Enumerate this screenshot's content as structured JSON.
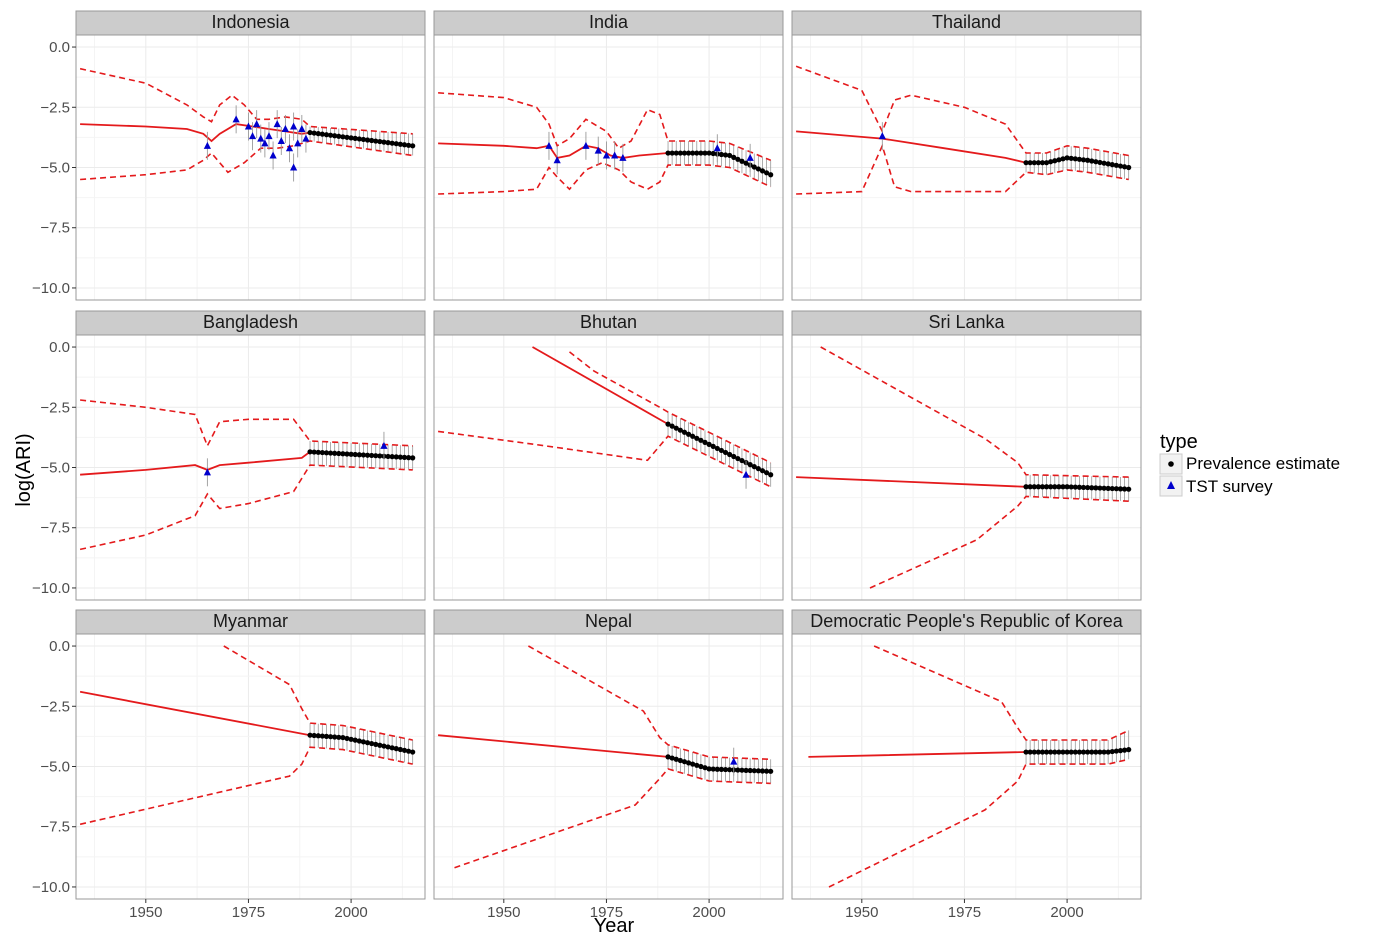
{
  "chart_data": {
    "type": "line",
    "xlabel": "Year",
    "ylabel": "log(ARI)",
    "xlim": [
      1933,
      2018
    ],
    "ylim": [
      -10.5,
      0.5
    ],
    "x_ticks": [
      1950,
      1975,
      2000
    ],
    "x_tick_labels": [
      "1950",
      "1975",
      "2000"
    ],
    "y_ticks": [
      0,
      -2.5,
      -5,
      -7.5,
      -10
    ],
    "y_tick_labels": [
      "0.0",
      "−2.5",
      "−5.0",
      "−7.5",
      "−10.0"
    ],
    "grid": true,
    "legend": {
      "title": "type",
      "placement": "right",
      "entries": [
        {
          "label": "Prevalence estimate",
          "marker": "circle",
          "color": "#000000"
        },
        {
          "label": "TST survey",
          "marker": "triangle",
          "color": "#0000cc"
        }
      ]
    },
    "colors": {
      "fit_line": "#e41a1c",
      "ci_line": "#e41a1c",
      "prevalence_point": "#000000",
      "tst_point": "#0000cc",
      "error_bar": "#999999",
      "strip_bg": "#cccccc",
      "panel_border": "#999999",
      "grid": "#ebebeb"
    },
    "panels": [
      {
        "name": "Indonesia",
        "fit": [
          [
            1934,
            -3.2
          ],
          [
            1950,
            -3.3
          ],
          [
            1960,
            -3.4
          ],
          [
            1964,
            -3.6
          ],
          [
            1966,
            -3.9
          ],
          [
            1968,
            -3.6
          ],
          [
            1972,
            -3.2
          ],
          [
            1976,
            -3.3
          ],
          [
            1980,
            -3.4
          ],
          [
            1984,
            -3.5
          ],
          [
            1988,
            -3.6
          ],
          [
            1990,
            -3.55
          ],
          [
            2015,
            -4.1
          ]
        ],
        "upper": [
          [
            1934,
            -0.9
          ],
          [
            1950,
            -1.5
          ],
          [
            1960,
            -2.4
          ],
          [
            1964,
            -2.9
          ],
          [
            1966,
            -3.1
          ],
          [
            1968,
            -2.4
          ],
          [
            1971,
            -2.0
          ],
          [
            1974,
            -2.4
          ],
          [
            1977,
            -3.0
          ],
          [
            1980,
            -3.0
          ],
          [
            1984,
            -2.9
          ],
          [
            1988,
            -3.0
          ],
          [
            1990,
            -3.3
          ],
          [
            2015,
            -3.6
          ]
        ],
        "lower": [
          [
            1934,
            -5.5
          ],
          [
            1950,
            -5.3
          ],
          [
            1960,
            -5.1
          ],
          [
            1964,
            -4.7
          ],
          [
            1966,
            -4.4
          ],
          [
            1968,
            -4.8
          ],
          [
            1970,
            -5.2
          ],
          [
            1974,
            -4.8
          ],
          [
            1978,
            -4.2
          ],
          [
            1982,
            -4.2
          ],
          [
            1986,
            -4.1
          ],
          [
            1990,
            -3.9
          ],
          [
            2015,
            -4.5
          ]
        ],
        "prevalence": {
          "start": 1990,
          "end": 2015,
          "values_start": -3.55,
          "values_end": -4.1
        },
        "tst": [
          [
            1965,
            -4.1
          ],
          [
            1972,
            -3.0
          ],
          [
            1975,
            -3.3
          ],
          [
            1976,
            -3.7
          ],
          [
            1977,
            -3.2
          ],
          [
            1978,
            -3.8
          ],
          [
            1979,
            -4.0
          ],
          [
            1980,
            -3.7
          ],
          [
            1981,
            -4.5
          ],
          [
            1982,
            -3.2
          ],
          [
            1983,
            -3.9
          ],
          [
            1984,
            -3.4
          ],
          [
            1985,
            -4.2
          ],
          [
            1986,
            -3.3
          ],
          [
            1987,
            -4.0
          ],
          [
            1988,
            -3.4
          ],
          [
            1989,
            -3.8
          ],
          [
            1986,
            -5.0
          ]
        ]
      },
      {
        "name": "India",
        "fit": [
          [
            1934,
            -4.0
          ],
          [
            1950,
            -4.1
          ],
          [
            1958,
            -4.2
          ],
          [
            1961,
            -4.1
          ],
          [
            1963,
            -4.6
          ],
          [
            1966,
            -4.5
          ],
          [
            1970,
            -4.1
          ],
          [
            1973,
            -4.2
          ],
          [
            1976,
            -4.5
          ],
          [
            1979,
            -4.6
          ],
          [
            1983,
            -4.5
          ],
          [
            1990,
            -4.4
          ],
          [
            2000,
            -4.4
          ],
          [
            2005,
            -4.5
          ],
          [
            2015,
            -5.3
          ]
        ],
        "upper": [
          [
            1934,
            -1.9
          ],
          [
            1950,
            -2.1
          ],
          [
            1958,
            -2.5
          ],
          [
            1961,
            -3.2
          ],
          [
            1963,
            -4.1
          ],
          [
            1966,
            -3.8
          ],
          [
            1970,
            -3.0
          ],
          [
            1975,
            -3.5
          ],
          [
            1978,
            -4.2
          ],
          [
            1981,
            -3.9
          ],
          [
            1985,
            -2.6
          ],
          [
            1988,
            -2.8
          ],
          [
            1990,
            -3.9
          ],
          [
            2000,
            -3.9
          ],
          [
            2005,
            -4.0
          ],
          [
            2015,
            -4.7
          ]
        ],
        "lower": [
          [
            1934,
            -6.1
          ],
          [
            1950,
            -6.0
          ],
          [
            1958,
            -5.9
          ],
          [
            1961,
            -5.0
          ],
          [
            1963,
            -5.4
          ],
          [
            1966,
            -5.9
          ],
          [
            1970,
            -5.1
          ],
          [
            1974,
            -4.8
          ],
          [
            1978,
            -5.1
          ],
          [
            1981,
            -5.6
          ],
          [
            1985,
            -5.9
          ],
          [
            1988,
            -5.6
          ],
          [
            1990,
            -4.9
          ],
          [
            2000,
            -4.9
          ],
          [
            2005,
            -5.0
          ],
          [
            2015,
            -5.8
          ]
        ],
        "prevalence": {
          "start": 1990,
          "end": 2015,
          "values_start": -4.4,
          "values_end": -5.3
        },
        "tst": [
          [
            1961,
            -4.1
          ],
          [
            1963,
            -4.7
          ],
          [
            1970,
            -4.1
          ],
          [
            1973,
            -4.3
          ],
          [
            1975,
            -4.5
          ],
          [
            1977,
            -4.5
          ],
          [
            1979,
            -4.6
          ],
          [
            2002,
            -4.2
          ],
          [
            2010,
            -4.6
          ]
        ]
      },
      {
        "name": "Thailand",
        "fit": [
          [
            1934,
            -3.5
          ],
          [
            1955,
            -3.8
          ],
          [
            1970,
            -4.2
          ],
          [
            1985,
            -4.6
          ],
          [
            1990,
            -4.8
          ],
          [
            1995,
            -4.8
          ],
          [
            2000,
            -4.6
          ],
          [
            2005,
            -4.7
          ],
          [
            2015,
            -5.0
          ]
        ],
        "upper": [
          [
            1934,
            -0.8
          ],
          [
            1950,
            -1.8
          ],
          [
            1955,
            -3.5
          ],
          [
            1958,
            -2.2
          ],
          [
            1962,
            -2.0
          ],
          [
            1975,
            -2.5
          ],
          [
            1985,
            -3.2
          ],
          [
            1990,
            -4.4
          ],
          [
            1995,
            -4.4
          ],
          [
            2000,
            -4.1
          ],
          [
            2005,
            -4.2
          ],
          [
            2015,
            -4.5
          ]
        ],
        "lower": [
          [
            1934,
            -6.1
          ],
          [
            1950,
            -6.0
          ],
          [
            1955,
            -4.1
          ],
          [
            1958,
            -5.8
          ],
          [
            1962,
            -6.0
          ],
          [
            1975,
            -6.0
          ],
          [
            1985,
            -6.0
          ],
          [
            1990,
            -5.2
          ],
          [
            1995,
            -5.3
          ],
          [
            2000,
            -5.1
          ],
          [
            2005,
            -5.2
          ],
          [
            2015,
            -5.5
          ]
        ],
        "prevalence": {
          "start": 1990,
          "end": 2015,
          "values_start": -4.8,
          "values_end": -5.0
        },
        "tst": [
          [
            1955,
            -3.7
          ]
        ]
      },
      {
        "name": "Bangladesh",
        "fit": [
          [
            1934,
            -5.3
          ],
          [
            1950,
            -5.1
          ],
          [
            1962,
            -4.9
          ],
          [
            1965,
            -5.1
          ],
          [
            1968,
            -4.9
          ],
          [
            1975,
            -4.8
          ],
          [
            1988,
            -4.6
          ],
          [
            1990,
            -4.35
          ],
          [
            2015,
            -4.6
          ]
        ],
        "upper": [
          [
            1934,
            -2.2
          ],
          [
            1950,
            -2.5
          ],
          [
            1962,
            -2.8
          ],
          [
            1965,
            -4.1
          ],
          [
            1968,
            -3.1
          ],
          [
            1975,
            -3.0
          ],
          [
            1986,
            -3.0
          ],
          [
            1990,
            -3.9
          ],
          [
            2015,
            -4.1
          ]
        ],
        "lower": [
          [
            1934,
            -8.4
          ],
          [
            1950,
            -7.8
          ],
          [
            1962,
            -7.0
          ],
          [
            1965,
            -6.1
          ],
          [
            1968,
            -6.7
          ],
          [
            1975,
            -6.5
          ],
          [
            1986,
            -6.0
          ],
          [
            1990,
            -4.9
          ],
          [
            2015,
            -5.1
          ]
        ],
        "prevalence": {
          "start": 1990,
          "end": 2015,
          "values_start": -4.35,
          "values_end": -4.6
        },
        "tst": [
          [
            1965,
            -5.2
          ],
          [
            2008,
            -4.1
          ]
        ]
      },
      {
        "name": "Bhutan",
        "fit": [
          [
            1957,
            0.0
          ],
          [
            1990,
            -3.2
          ],
          [
            2015,
            -5.3
          ]
        ],
        "upper": [
          [
            1966,
            -0.2
          ],
          [
            1972,
            -1.0
          ],
          [
            1988,
            -2.5
          ],
          [
            1990,
            -2.7
          ],
          [
            2015,
            -4.8
          ]
        ],
        "lower": [
          [
            1934,
            -3.5
          ],
          [
            1960,
            -4.1
          ],
          [
            1985,
            -4.7
          ],
          [
            1990,
            -3.7
          ],
          [
            2015,
            -5.8
          ]
        ],
        "prevalence": {
          "start": 1990,
          "end": 2015,
          "values_start": -3.2,
          "values_end": -5.3
        },
        "tst": [
          [
            2009,
            -5.3
          ]
        ]
      },
      {
        "name": "Sri Lanka",
        "fit": [
          [
            1934,
            -5.4
          ],
          [
            1990,
            -5.8
          ],
          [
            2000,
            -5.8
          ],
          [
            2015,
            -5.9
          ]
        ],
        "upper": [
          [
            1940,
            0.0
          ],
          [
            1980,
            -3.8
          ],
          [
            1988,
            -4.8
          ],
          [
            1990,
            -5.3
          ],
          [
            2015,
            -5.4
          ]
        ],
        "lower": [
          [
            1952,
            -10.0
          ],
          [
            1978,
            -8.0
          ],
          [
            1988,
            -6.6
          ],
          [
            1990,
            -6.2
          ],
          [
            2015,
            -6.4
          ]
        ],
        "prevalence": {
          "start": 1990,
          "end": 2015,
          "values_start": -5.8,
          "values_end": -5.9
        },
        "tst": []
      },
      {
        "name": "Myanmar",
        "fit": [
          [
            1934,
            -1.9
          ],
          [
            1990,
            -3.7
          ],
          [
            1998,
            -3.8
          ],
          [
            2015,
            -4.4
          ]
        ],
        "upper": [
          [
            1969,
            0.0
          ],
          [
            1985,
            -1.6
          ],
          [
            1988,
            -2.6
          ],
          [
            1990,
            -3.2
          ],
          [
            1998,
            -3.3
          ],
          [
            2015,
            -3.9
          ]
        ],
        "lower": [
          [
            1934,
            -7.4
          ],
          [
            1985,
            -5.4
          ],
          [
            1988,
            -4.9
          ],
          [
            1990,
            -4.2
          ],
          [
            1998,
            -4.3
          ],
          [
            2015,
            -4.9
          ]
        ],
        "prevalence": {
          "start": 1990,
          "end": 2015,
          "values_start": -3.7,
          "values_end": -4.4
        },
        "tst": []
      },
      {
        "name": "Nepal",
        "fit": [
          [
            1934,
            -3.7
          ],
          [
            1990,
            -4.6
          ],
          [
            2000,
            -5.1
          ],
          [
            2015,
            -5.2
          ]
        ],
        "upper": [
          [
            1956,
            0.0
          ],
          [
            1984,
            -2.7
          ],
          [
            1988,
            -3.8
          ],
          [
            1990,
            -4.1
          ],
          [
            2000,
            -4.6
          ],
          [
            2015,
            -4.7
          ]
        ],
        "lower": [
          [
            1938,
            -9.2
          ],
          [
            1982,
            -6.6
          ],
          [
            1988,
            -5.5
          ],
          [
            1990,
            -5.1
          ],
          [
            2000,
            -5.6
          ],
          [
            2015,
            -5.7
          ]
        ],
        "prevalence": {
          "start": 1990,
          "end": 2015,
          "values_start": -4.6,
          "values_end": -5.2
        },
        "tst": [
          [
            2006,
            -4.8
          ]
        ]
      },
      {
        "name": "Democratic People's Republic of Korea",
        "fit": [
          [
            1937,
            -4.6
          ],
          [
            1990,
            -4.4
          ],
          [
            2010,
            -4.4
          ],
          [
            2015,
            -4.3
          ]
        ],
        "upper": [
          [
            1953,
            0.0
          ],
          [
            1984,
            -2.3
          ],
          [
            1988,
            -3.4
          ],
          [
            1990,
            -3.9
          ],
          [
            2010,
            -3.9
          ],
          [
            2015,
            -3.5
          ]
        ],
        "lower": [
          [
            1942,
            -10.0
          ],
          [
            1980,
            -6.8
          ],
          [
            1988,
            -5.6
          ],
          [
            1990,
            -4.9
          ],
          [
            2010,
            -4.9
          ],
          [
            2015,
            -4.7
          ]
        ],
        "prevalence": {
          "start": 1990,
          "end": 2015,
          "values_start": -4.4,
          "values_end": -4.3
        },
        "tst": []
      }
    ]
  }
}
